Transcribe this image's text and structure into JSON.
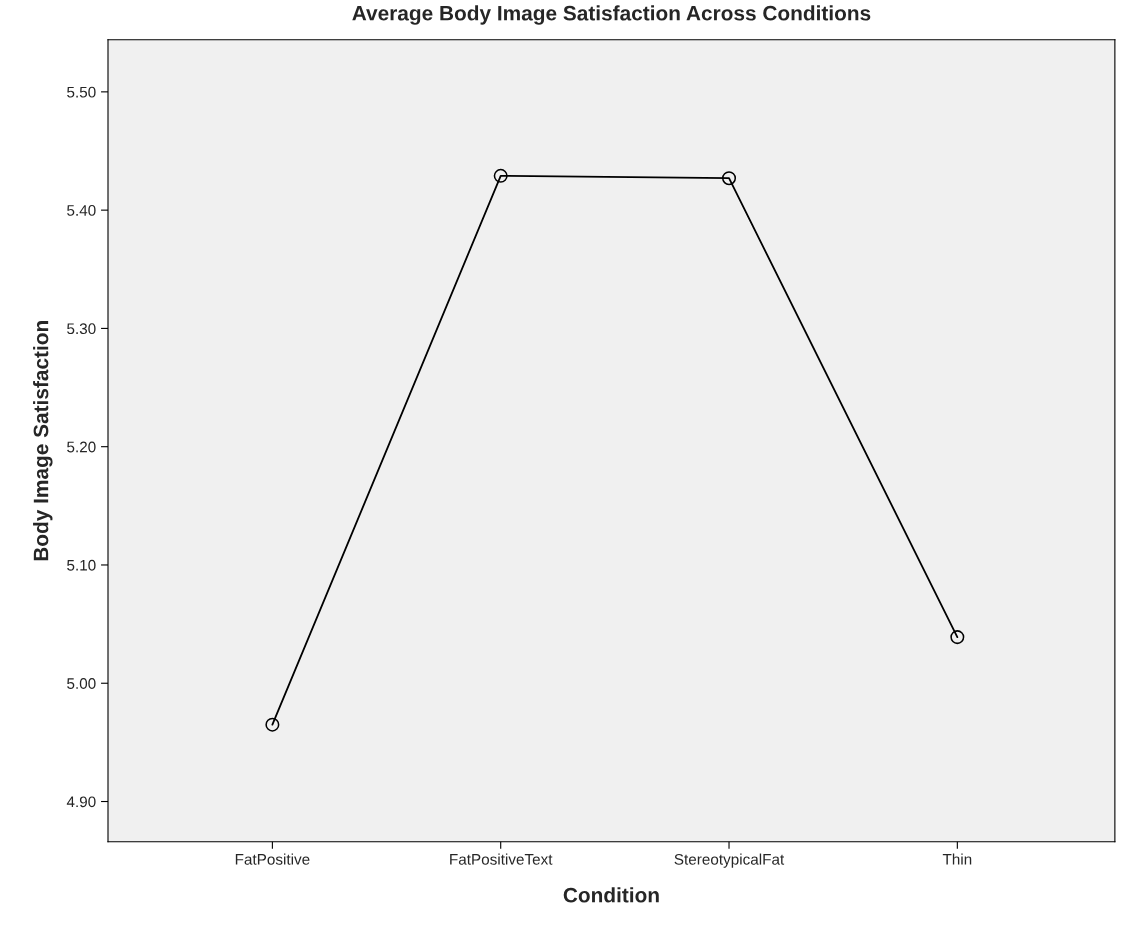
{
  "chart_data": {
    "type": "line",
    "title": "Average Body Image Satisfaction Across Conditions",
    "xlabel": "Condition",
    "ylabel": "Body Image Satisfaction",
    "categories": [
      "FatPositive",
      "FatPositiveText",
      "StereotypicalFat",
      "Thin"
    ],
    "series": [
      {
        "color": "#000000",
        "values": [
          4.965,
          5.429,
          5.427,
          5.039
        ]
      }
    ],
    "ylim": [
      4.866,
      5.544
    ],
    "yticks": [
      {
        "value": 4.9,
        "label": "4.90"
      },
      {
        "value": 5.0,
        "label": "5.00"
      },
      {
        "value": 5.1,
        "label": "5.10"
      },
      {
        "value": 5.2,
        "label": "5.20"
      },
      {
        "value": 5.3,
        "label": "5.30"
      },
      {
        "value": 5.4,
        "label": "5.40"
      },
      {
        "value": 5.5,
        "label": "5.50"
      }
    ],
    "grid": false,
    "legend": false,
    "marker": "circle",
    "line_style": "solid"
  }
}
